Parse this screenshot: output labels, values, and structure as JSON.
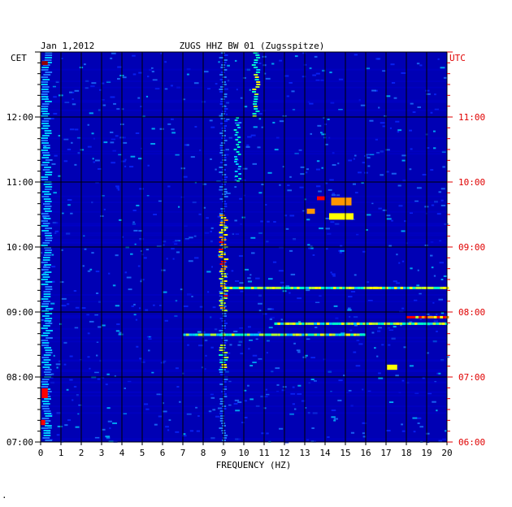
{
  "header": {
    "date": "Jan 1,2012",
    "station": "ZUGS HHZ BW 01 (Zugsspitze)",
    "left_tz": "CET",
    "right_tz": "UTC"
  },
  "footer": {
    "mark": "·"
  },
  "colors": {
    "background": "#0000b4",
    "grid": "#000000",
    "utc_text": "#e00000",
    "scale": [
      "#00008c",
      "#0000c8",
      "#0a28ff",
      "#1e78ff",
      "#00c8ff",
      "#00ffc8",
      "#b4ff32",
      "#ffff00",
      "#ff9600",
      "#ff0000",
      "#960000"
    ]
  },
  "chart_data": {
    "type": "heatmap",
    "title": "ZUGS HHZ BW 01 (Zugsspitze)",
    "xlabel": "FREQUENCY (HZ)",
    "xlim": [
      0,
      20
    ],
    "x_ticks": [
      "0",
      "1",
      "2",
      "3",
      "4",
      "5",
      "6",
      "7",
      "8",
      "9",
      "10",
      "11",
      "12",
      "13",
      "14",
      "15",
      "16",
      "17",
      "18",
      "19",
      "20"
    ],
    "ylim_cet_hours": [
      7,
      13
    ],
    "left_ticks": [
      "07:00",
      "08:00",
      "09:00",
      "10:00",
      "11:00",
      "12:00"
    ],
    "right_ticks": [
      "06:00",
      "07:00",
      "08:00",
      "09:00",
      "10:00",
      "11:00"
    ],
    "grid": true,
    "features": [
      {
        "kind": "band",
        "f": 0.3,
        "width": 0.35,
        "t0": 7.0,
        "t1": 13.0,
        "level": 0.45
      },
      {
        "kind": "band",
        "f": 9.0,
        "width": 0.2,
        "t0": 7.0,
        "t1": 13.0,
        "level": 0.35
      },
      {
        "kind": "band",
        "f": 9.0,
        "width": 0.25,
        "t0": 9.0,
        "t1": 10.5,
        "level": 0.9
      },
      {
        "kind": "band",
        "f": 9.0,
        "width": 0.25,
        "t0": 8.1,
        "t1": 8.5,
        "level": 0.7
      },
      {
        "kind": "band",
        "f": 10.6,
        "width": 0.2,
        "t0": 12.0,
        "t1": 13.0,
        "level": 0.7
      },
      {
        "kind": "band",
        "f": 9.7,
        "width": 0.15,
        "t0": 11.0,
        "t1": 12.0,
        "level": 0.55
      },
      {
        "kind": "line",
        "t": 9.37,
        "f0": 9.0,
        "f1": 20.0,
        "level": 0.75
      },
      {
        "kind": "line",
        "t": 8.92,
        "f0": 18.0,
        "f1": 20.0,
        "level": 0.95
      },
      {
        "kind": "line",
        "t": 8.82,
        "f0": 11.5,
        "f1": 20.0,
        "level": 0.75
      },
      {
        "kind": "line",
        "t": 8.65,
        "f0": 7.0,
        "f1": 16.0,
        "level": 0.7
      },
      {
        "kind": "blob",
        "f": 14.8,
        "t": 10.7,
        "w": 1.0,
        "h": 0.12,
        "level": 0.8
      },
      {
        "kind": "blob",
        "f": 14.8,
        "t": 10.47,
        "w": 1.2,
        "h": 0.1,
        "level": 0.7
      },
      {
        "kind": "blob",
        "f": 13.8,
        "t": 10.75,
        "w": 0.4,
        "h": 0.06,
        "level": 0.85
      },
      {
        "kind": "blob",
        "f": 13.3,
        "t": 10.55,
        "w": 0.4,
        "h": 0.08,
        "level": 0.8
      },
      {
        "kind": "blob",
        "f": 17.3,
        "t": 8.15,
        "w": 0.5,
        "h": 0.08,
        "level": 0.7
      },
      {
        "kind": "blob",
        "f": 0.2,
        "t": 12.83,
        "w": 0.3,
        "h": 0.06,
        "level": 0.95
      },
      {
        "kind": "blob",
        "f": 0.2,
        "t": 7.75,
        "w": 0.3,
        "h": 0.15,
        "level": 0.85
      },
      {
        "kind": "blob",
        "f": 0.1,
        "t": 7.3,
        "w": 0.25,
        "h": 0.08,
        "level": 0.9
      }
    ]
  }
}
